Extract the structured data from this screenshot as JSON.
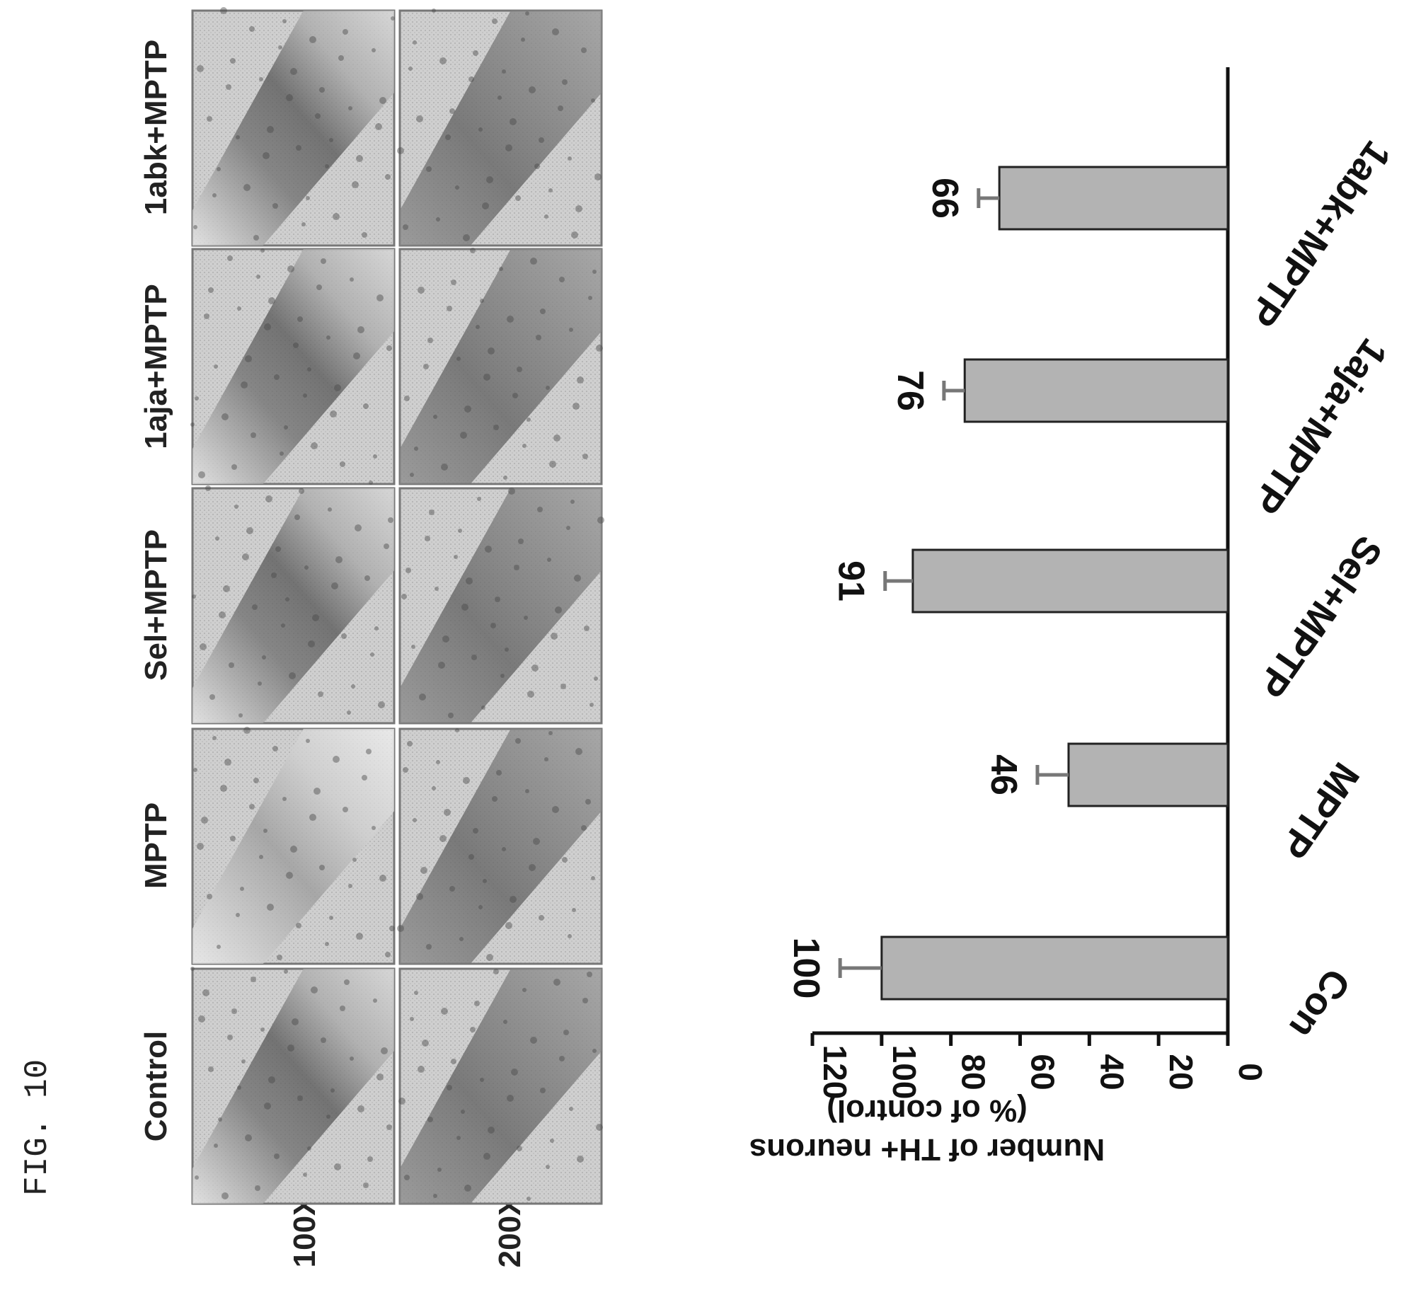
{
  "figure": {
    "label": "FIG. 10"
  },
  "micrographs": {
    "columns": [
      "Control",
      "MPTP",
      "Sel+MPTP",
      "1aja+MPTP",
      "1abk+MPTP"
    ],
    "rows": [
      "100X",
      "200X"
    ]
  },
  "chart_data": {
    "type": "bar",
    "categories": [
      "Con",
      "MPTP",
      "Sel+MPTP",
      "1aja+MPTP",
      "1abk+MPTP"
    ],
    "values": [
      100,
      46,
      91,
      76,
      66
    ],
    "value_labels": [
      "100",
      "46",
      "91",
      "76",
      "66"
    ],
    "errors": [
      12,
      9,
      8,
      6,
      6
    ],
    "ylabel_line1": "Number of TH+ neurons",
    "ylabel_line2": "(% of control)",
    "ylim": [
      0,
      120
    ],
    "yticks": [
      "0",
      "20",
      "40",
      "60",
      "80",
      "100",
      "120"
    ],
    "bar_color": "#b3b3b3",
    "orientation": "rotated 90 degrees clockwise on page",
    "grid": false
  }
}
